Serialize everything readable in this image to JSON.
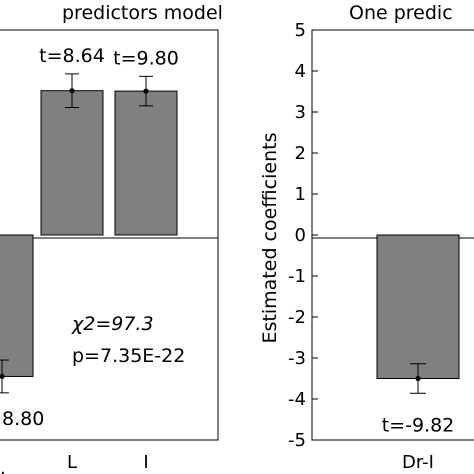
{
  "chart_data": [
    {
      "type": "bar",
      "title": "predictors model",
      "categories": [
        "",
        "L",
        "I"
      ],
      "values": [
        -3.45,
        3.52,
        3.51
      ],
      "error": [
        0.4,
        0.41,
        0.36
      ],
      "bar_labels": [
        "8.80",
        "t=8.64",
        "t=9.80"
      ],
      "ylim": [
        -5,
        5
      ],
      "annotation": {
        "chi": "χ2=97.3",
        "p": "p=7.35E-22"
      },
      "xtick_labels": [
        "L",
        "I"
      ],
      "bar_color": "#808080"
    },
    {
      "type": "bar",
      "title": "One predic",
      "ylabel": "Estimated coefficients",
      "categories": [
        "Dr-I"
      ],
      "values": [
        -3.5
      ],
      "error": [
        0.36
      ],
      "bar_labels": [
        "t=-9.82"
      ],
      "ylim": [
        -5,
        5
      ],
      "yticks": [
        "5",
        "4",
        "3",
        "2",
        "1",
        "0",
        "-1",
        "-2",
        "-3",
        "-4",
        "-5"
      ],
      "bar_color": "#808080"
    }
  ]
}
